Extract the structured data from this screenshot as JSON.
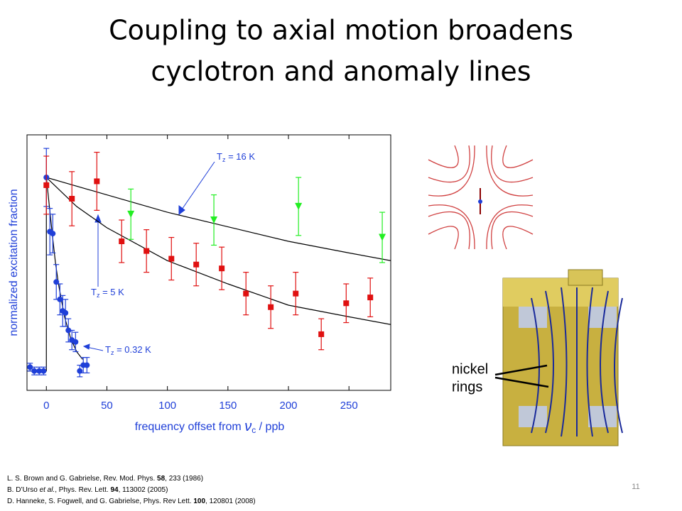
{
  "slide": {
    "title": [
      "Coupling to axial motion broadens",
      "cyclotron and anomaly lines"
    ],
    "references": [
      {
        "pre": "L. S. Brown and G. Gabrielse, Rev. Mod. Phys. ",
        "bold": "58",
        "post": ", 233 (1986)"
      },
      {
        "pre": "B. D’Urso ",
        "italic": "et al.",
        "mid": ", Phys. Rev. Lett. ",
        "bold": "94",
        "post": ", 113002 (2005)"
      },
      {
        "pre": "D. Hanneke, S. Fogwell, and G. Gabrielse, Phys. Rev Lett. ",
        "bold": "100",
        "post": ", 120801 (2008)"
      }
    ],
    "page_number": "11",
    "trap_label": [
      "nickel",
      "rings"
    ]
  },
  "chart_data": {
    "type": "scatter",
    "xlabel": {
      "pre": "frequency offset from ",
      "symbol": "ν",
      "sub": "c",
      "post": " / ppb"
    },
    "ylabel": "normalized excitation fraction",
    "xlim": [
      -16,
      284.5
    ],
    "ylim": [
      -0.1,
      1.22
    ],
    "xticks": [
      0,
      50,
      100,
      150,
      200,
      250
    ],
    "series": [
      {
        "name": "T = 0.32 K",
        "color": "#1f3fd8",
        "marker": "circle",
        "x": [
          -13.5,
          -10,
          -5.9,
          -2.3,
          0,
          2.9,
          5.3,
          8.2,
          11.2,
          13.5,
          15.8,
          18.2,
          21.1,
          24.1,
          27.6,
          30.5,
          33.5
        ],
        "values": [
          0.02,
          0,
          0,
          0,
          1.0,
          0.72,
          0.71,
          0.46,
          0.37,
          0.31,
          0.3,
          0.21,
          0.16,
          0.15,
          0,
          0.03,
          0.03
        ],
        "errors": [
          0.02,
          0.02,
          0.02,
          0.02,
          0.15,
          0.12,
          0.1,
          0.09,
          0.08,
          0.08,
          0.07,
          0.06,
          0.05,
          0.05,
          0.03,
          0.04,
          0.04
        ]
      },
      {
        "name": "T = 5 K",
        "color": "#e01010",
        "marker": "square",
        "x": [
          0,
          21.1,
          41.7,
          62.2,
          82.7,
          103.3,
          123.8,
          144.9,
          164.9,
          185.4,
          206,
          227.1,
          247.7,
          267.6
        ],
        "values": [
          0.96,
          0.89,
          0.98,
          0.67,
          0.62,
          0.58,
          0.55,
          0.53,
          0.4,
          0.33,
          0.4,
          0.19,
          0.35,
          0.38
        ],
        "errors": [
          0.15,
          0.14,
          0.15,
          0.11,
          0.11,
          0.11,
          0.11,
          0.11,
          0.11,
          0.11,
          0.11,
          0.08,
          0.1,
          0.1
        ]
      },
      {
        "name": "T = 16 K",
        "color": "#22ee22",
        "marker": "triangle",
        "x": [
          69.8,
          138.4,
          208.3,
          277.5
        ],
        "values": [
          0.81,
          0.78,
          0.85,
          0.69
        ],
        "errors": [
          0.13,
          0.13,
          0.15,
          0.13
        ]
      }
    ],
    "curves": [
      {
        "color": "#000000",
        "x": [
          0,
          50,
          100,
          150,
          200,
          250,
          284.5
        ],
        "values": [
          1.0,
          0.91,
          0.82,
          0.745,
          0.67,
          0.61,
          0.57
        ]
      },
      {
        "color": "#000000",
        "x": [
          0,
          25,
          50,
          100,
          150,
          200,
          250,
          284.5
        ],
        "values": [
          1.0,
          0.85,
          0.74,
          0.57,
          0.45,
          0.34,
          0.28,
          0.24
        ]
      },
      {
        "color": "#000000",
        "x": [
          -16,
          0,
          0,
          2.5,
          5,
          7.5,
          10,
          15,
          20,
          25,
          30
        ],
        "values": [
          0,
          0,
          1.0,
          0.85,
          0.7,
          0.56,
          0.45,
          0.28,
          0.17,
          0.1,
          0.06
        ]
      }
    ],
    "annotations": [
      {
        "main": "T",
        "sub": "z",
        "tail": " = 16 K"
      },
      {
        "main": "T",
        "sub": "z",
        "tail": " = 5 K"
      },
      {
        "main": "T",
        "sub": "z",
        "tail": " = 0.32 K"
      }
    ]
  }
}
